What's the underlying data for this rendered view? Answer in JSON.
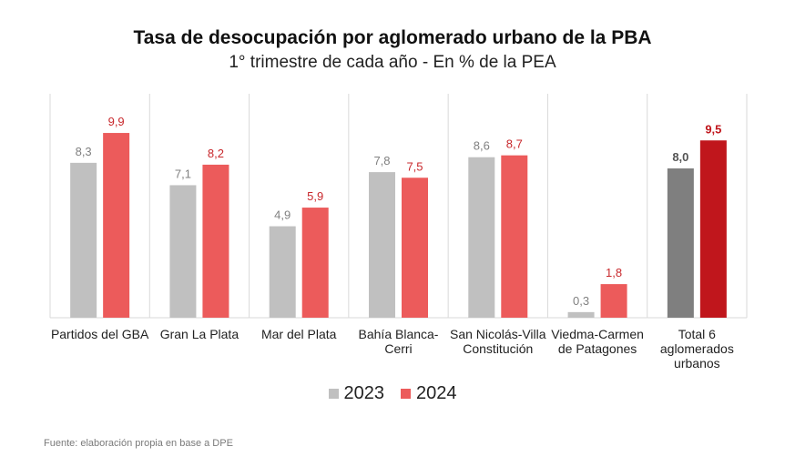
{
  "chart_data": {
    "type": "bar",
    "title": "Tasa de desocupación por aglomerado urbano de la PBA",
    "subtitle": "1° trimestre de cada año - En % de la PEA",
    "categories": [
      [
        "Partidos del GBA"
      ],
      [
        "Gran La Plata"
      ],
      [
        "Mar del Plata"
      ],
      [
        "Bahía Blanca-",
        "Cerri"
      ],
      [
        "San Nicolás-Villa",
        "Constitución"
      ],
      [
        "Viedma-Carmen",
        "de Patagones"
      ],
      [
        "Total  6",
        "aglomerados",
        "urbanos"
      ]
    ],
    "series": [
      {
        "name": "2023",
        "values": [
          8.3,
          7.1,
          4.9,
          7.8,
          8.6,
          0.3,
          8.0
        ]
      },
      {
        "name": "2024",
        "values": [
          9.9,
          8.2,
          5.9,
          7.5,
          8.7,
          1.8,
          9.5
        ]
      }
    ],
    "value_labels": [
      [
        "8,3",
        "7,1",
        "4,9",
        "7,8",
        "8,6",
        "0,3",
        "8,0"
      ],
      [
        "9,9",
        "8,2",
        "5,9",
        "7,5",
        "8,7",
        "1,8",
        "9,5"
      ]
    ],
    "ylim": [
      0,
      11
    ],
    "grid": false,
    "legend_position": "bottom",
    "colors": {
      "series_2023": "#c0c0c0",
      "series_2024": "#ec5b5b",
      "total_2023": "#7f7f7f",
      "total_2024": "#c0161c",
      "label_2023": "#808080",
      "label_2024": "#c8282c",
      "separator": "#d9d9d9"
    },
    "highlight_last_category": true
  },
  "source": "Fuente: elaboración propia en base a DPE"
}
